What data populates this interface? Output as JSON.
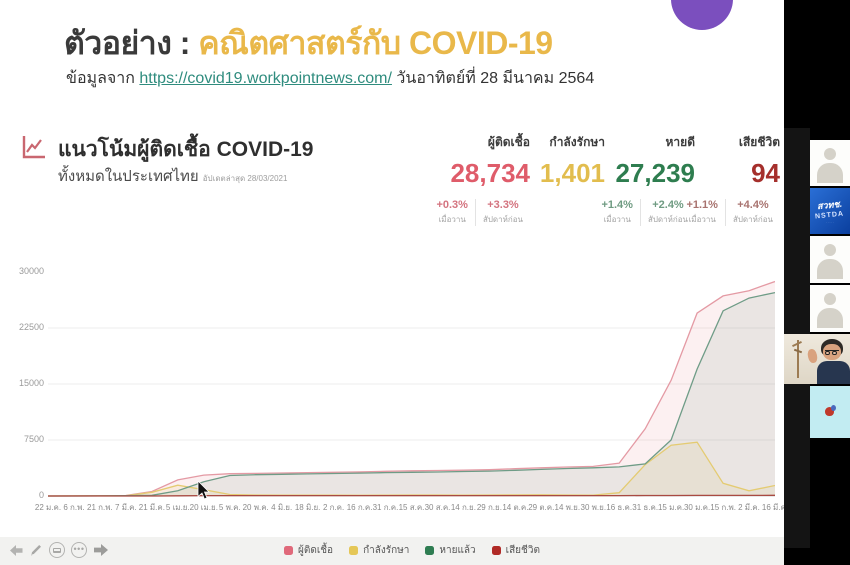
{
  "header": {
    "title_prefix": "ตัวอย่าง : ",
    "title_highlight": "คณิตศาสตร์กับ COVID-19",
    "subtitle_prefix": "ข้อมูลจาก ",
    "subtitle_link": "https://covid19.workpointnews.com/",
    "subtitle_suffix": " วันอาทิตย์ที่ 28 มีนาคม 2564",
    "accent_color": "#e9b84a",
    "link_color": "#2f8c7e",
    "circle_color": "#7b4fbe"
  },
  "dashboard": {
    "section_title": "แนวโน้มผู้ติดเชื้อ COVID-19",
    "section_subtitle": "ทั้งหมดในประเทศไทย",
    "updated_note": "อัปเดตล่าสุด 28/03/2021",
    "stats": [
      {
        "label": "ผู้ติดเชื้อ",
        "value": "28,734",
        "color": "#df5c6a",
        "pct_color": "#d4737f",
        "changes": [
          {
            "pct": "+0.3%",
            "period": "เมื่อวาน"
          },
          {
            "pct": "+3.3%",
            "period": "สัปดาห์ก่อน"
          }
        ]
      },
      {
        "label": "กำลังรักษา",
        "value": "1,401",
        "color": "#e2bd4e",
        "pct_color": "#c9ab55",
        "changes": []
      },
      {
        "label": "หายดี",
        "value": "27,239",
        "color": "#2e7d4f",
        "pct_color": "#6f9b82",
        "changes": [
          {
            "pct": "+1.4%",
            "period": "เมื่อวาน"
          },
          {
            "pct": "+2.4%",
            "period": "สัปดาห์ก่อน"
          }
        ]
      },
      {
        "label": "เสียชีวิต",
        "value": "94",
        "color": "#a52f2c",
        "pct_color": "#a8736f",
        "changes": [
          {
            "pct": "+1.1%",
            "period": "เมื่อวาน"
          },
          {
            "pct": "+4.4%",
            "period": "สัปดาห์ก่อน"
          }
        ]
      }
    ]
  },
  "chart_data": {
    "type": "area",
    "title": "แนวโน้มผู้ติดเชื้อ COVID-19 ทั้งหมดในประเทศไทย",
    "xlabel": "",
    "ylabel": "",
    "ylim": [
      0,
      30000
    ],
    "yticks": [
      30000,
      22500,
      15000,
      7500,
      0
    ],
    "grid": true,
    "legend_position": "bottom",
    "categories": [
      "22 ม.ค.",
      "6 ก.พ.",
      "21 ก.พ.",
      "7 มี.ค.",
      "21 มี.ค.",
      "5 เม.ย.",
      "20 เม.ย.",
      "5 พ.ค.",
      "20 พ.ค.",
      "4 มิ.ย.",
      "18 มิ.ย.",
      "2 ก.ค.",
      "16 ก.ค.",
      "31 ก.ค.",
      "15 ส.ค.",
      "30 ส.ค.",
      "14 ก.ย.",
      "29 ก.ย.",
      "14 ต.ค.",
      "29 ต.ค.",
      "14 พ.ย.",
      "30 พ.ย.",
      "16 ธ.ค.",
      "31 ธ.ค.",
      "15 ม.ค.",
      "30 ม.ค.",
      "15 ก.พ.",
      "2 มี.ค.",
      "16 มี.ค."
    ],
    "series": [
      {
        "name": "ผู้ติดเชื้อ",
        "color": "#e49aa4",
        "fill": "rgba(224,105,122,0.10)",
        "values": [
          0,
          15,
          35,
          70,
          600,
          2150,
          2800,
          2990,
          3030,
          3080,
          3140,
          3180,
          3230,
          3310,
          3380,
          3410,
          3450,
          3520,
          3650,
          3780,
          3880,
          3960,
          4400,
          9000,
          15500,
          24500,
          26800,
          27500,
          28734
        ]
      },
      {
        "name": "กำลังรักษา",
        "color": "#e4cb72",
        "fill": "rgba(229,199,87,0.12)",
        "values": [
          0,
          10,
          15,
          35,
          500,
          1450,
          850,
          200,
          130,
          120,
          120,
          110,
          100,
          120,
          140,
          130,
          110,
          130,
          150,
          160,
          140,
          120,
          440,
          4200,
          6800,
          7200,
          1700,
          700,
          1400
        ]
      },
      {
        "name": "หายแล้ว",
        "color": "#6f9c87",
        "fill": "rgba(111,156,135,0.12)",
        "values": [
          0,
          5,
          20,
          35,
          100,
          700,
          1900,
          2750,
          2850,
          2900,
          2960,
          3010,
          3070,
          3130,
          3180,
          3220,
          3280,
          3330,
          3440,
          3560,
          3680,
          3780,
          3900,
          4300,
          7500,
          17000,
          24800,
          26500,
          27239
        ]
      },
      {
        "name": "เสียชีวิต",
        "color": "#a94a42",
        "fill": "none",
        "values": [
          0,
          0,
          0,
          1,
          4,
          23,
          47,
          54,
          56,
          58,
          58,
          58,
          58,
          58,
          58,
          58,
          59,
          59,
          59,
          59,
          60,
          60,
          60,
          63,
          67,
          77,
          82,
          85,
          94
        ]
      }
    ],
    "legend": [
      {
        "label": "ผู้ติดเชื้อ",
        "color": "#e0697a"
      },
      {
        "label": "กำลังรักษา",
        "color": "#e5c757"
      },
      {
        "label": "หายแล้ว",
        "color": "#2f7d52"
      },
      {
        "label": "เสียชีวิต",
        "color": "#b02a26"
      }
    ]
  },
  "controls": {
    "icons": [
      "previous-arrow",
      "pen",
      "laptop",
      "ellipsis",
      "next-arrow"
    ]
  },
  "sidebar": {
    "participants": [
      {
        "type": "avatar"
      },
      {
        "type": "logo",
        "text1": "สวทช.",
        "text2": "NSTDA"
      },
      {
        "type": "avatar"
      },
      {
        "type": "avatar"
      },
      {
        "type": "webcam-video"
      },
      {
        "type": "graphic-heart"
      }
    ]
  }
}
